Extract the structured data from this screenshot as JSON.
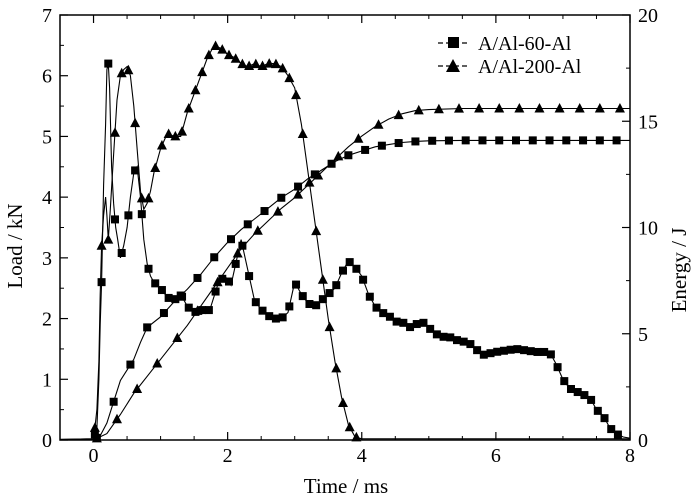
{
  "chart_data": {
    "type": "line",
    "xlabel": "Time / ms",
    "ylabel_left": "Load / kN",
    "ylabel_right": "Energy / J",
    "xlim": [
      -0.5,
      8
    ],
    "ylim_left": [
      0,
      7
    ],
    "ylim_right": [
      0,
      20
    ],
    "x_ticks": [
      0,
      2,
      4,
      6,
      8
    ],
    "y_left_ticks": [
      0,
      1,
      2,
      3,
      4,
      5,
      6,
      7
    ],
    "y_right_ticks": [
      0,
      5,
      10,
      15,
      20
    ],
    "legend_position": "top-right",
    "series": [
      {
        "name": "A/Al-60-Al",
        "marker": "square",
        "load": [
          [
            -0.5,
            0.01
          ],
          [
            0,
            0.02
          ],
          [
            0.05,
            0.2
          ],
          [
            0.08,
            1.0
          ],
          [
            0.1,
            1.9
          ],
          [
            0.12,
            2.6
          ],
          [
            0.15,
            4.2
          ],
          [
            0.18,
            5.2
          ],
          [
            0.2,
            6.1
          ],
          [
            0.22,
            6.2
          ],
          [
            0.24,
            5.8
          ],
          [
            0.27,
            4.5
          ],
          [
            0.3,
            3.9
          ],
          [
            0.33,
            3.5
          ],
          [
            0.36,
            3.3
          ],
          [
            0.4,
            3.0
          ],
          [
            0.45,
            3.2
          ],
          [
            0.5,
            3.5
          ],
          [
            0.55,
            4.0
          ],
          [
            0.6,
            4.4
          ],
          [
            0.65,
            4.5
          ],
          [
            0.7,
            4.0
          ],
          [
            0.75,
            3.3
          ],
          [
            0.8,
            2.9
          ],
          [
            0.85,
            2.7
          ],
          [
            0.9,
            2.6
          ],
          [
            1.0,
            2.5
          ],
          [
            1.1,
            2.35
          ],
          [
            1.2,
            2.3
          ],
          [
            1.3,
            2.4
          ],
          [
            1.4,
            2.2
          ],
          [
            1.5,
            2.1
          ],
          [
            1.6,
            2.15
          ],
          [
            1.7,
            2.1
          ],
          [
            1.75,
            2.2
          ],
          [
            1.85,
            2.55
          ],
          [
            1.95,
            2.7
          ],
          [
            2.0,
            2.65
          ],
          [
            2.05,
            2.55
          ],
          [
            2.12,
            2.9
          ],
          [
            2.2,
            3.3
          ],
          [
            2.3,
            2.8
          ],
          [
            2.4,
            2.3
          ],
          [
            2.5,
            2.15
          ],
          [
            2.6,
            2.05
          ],
          [
            2.7,
            2.0
          ],
          [
            2.8,
            2.0
          ],
          [
            2.9,
            2.1
          ],
          [
            3.0,
            2.6
          ],
          [
            3.1,
            2.4
          ],
          [
            3.2,
            2.25
          ],
          [
            3.3,
            2.2
          ],
          [
            3.4,
            2.3
          ],
          [
            3.5,
            2.4
          ],
          [
            3.6,
            2.5
          ],
          [
            3.7,
            2.75
          ],
          [
            3.8,
            2.95
          ],
          [
            3.9,
            2.85
          ],
          [
            4.0,
            2.7
          ],
          [
            4.1,
            2.4
          ],
          [
            4.2,
            2.2
          ],
          [
            4.3,
            2.1
          ],
          [
            4.4,
            2.05
          ],
          [
            4.5,
            1.95
          ],
          [
            4.6,
            1.95
          ],
          [
            4.7,
            1.85
          ],
          [
            4.8,
            1.9
          ],
          [
            4.9,
            1.95
          ],
          [
            5.0,
            1.85
          ],
          [
            5.1,
            1.75
          ],
          [
            5.2,
            1.7
          ],
          [
            5.3,
            1.7
          ],
          [
            5.4,
            1.65
          ],
          [
            5.6,
            1.6
          ],
          [
            5.8,
            1.4
          ],
          [
            6.0,
            1.45
          ],
          [
            6.3,
            1.5
          ],
          [
            6.6,
            1.45
          ],
          [
            6.8,
            1.45
          ],
          [
            6.9,
            1.25
          ],
          [
            7.0,
            1.0
          ],
          [
            7.1,
            0.85
          ],
          [
            7.2,
            0.8
          ],
          [
            7.3,
            0.75
          ],
          [
            7.4,
            0.7
          ],
          [
            7.5,
            0.5
          ],
          [
            7.6,
            0.4
          ],
          [
            7.7,
            0.2
          ],
          [
            7.8,
            0.1
          ],
          [
            7.9,
            0.05
          ],
          [
            8.0,
            0.03
          ]
        ],
        "energy": [
          [
            0,
            0
          ],
          [
            0.1,
            0.2
          ],
          [
            0.2,
            0.8
          ],
          [
            0.3,
            1.8
          ],
          [
            0.4,
            2.8
          ],
          [
            0.5,
            3.3
          ],
          [
            0.6,
            3.8
          ],
          [
            0.7,
            4.6
          ],
          [
            0.8,
            5.3
          ],
          [
            1.0,
            5.8
          ],
          [
            1.2,
            6.5
          ],
          [
            1.4,
            7.1
          ],
          [
            1.6,
            7.8
          ],
          [
            1.8,
            8.6
          ],
          [
            2.0,
            9.3
          ],
          [
            2.2,
            9.9
          ],
          [
            2.4,
            10.4
          ],
          [
            2.6,
            10.9
          ],
          [
            2.8,
            11.4
          ],
          [
            3.0,
            11.8
          ],
          [
            3.2,
            12.3
          ],
          [
            3.4,
            12.7
          ],
          [
            3.6,
            13.1
          ],
          [
            3.8,
            13.4
          ],
          [
            4.0,
            13.6
          ],
          [
            4.2,
            13.8
          ],
          [
            4.4,
            13.9
          ],
          [
            4.6,
            14.0
          ],
          [
            4.8,
            14.05
          ],
          [
            5.0,
            14.08
          ],
          [
            5.5,
            14.1
          ],
          [
            6.0,
            14.1
          ],
          [
            7.0,
            14.1
          ],
          [
            8.0,
            14.1
          ]
        ]
      },
      {
        "name": "A/Al-200-Al",
        "marker": "triangle",
        "load": [
          [
            -0.5,
            0.01
          ],
          [
            0,
            0.02
          ],
          [
            0.02,
            0.2
          ],
          [
            0.05,
            0.5
          ],
          [
            0.08,
            1.3
          ],
          [
            0.1,
            2.4
          ],
          [
            0.12,
            3.2
          ],
          [
            0.15,
            3.7
          ],
          [
            0.18,
            4.0
          ],
          [
            0.2,
            3.7
          ],
          [
            0.22,
            3.3
          ],
          [
            0.25,
            3.8
          ],
          [
            0.3,
            4.7
          ],
          [
            0.35,
            5.6
          ],
          [
            0.4,
            6.0
          ],
          [
            0.45,
            6.1
          ],
          [
            0.5,
            6.15
          ],
          [
            0.55,
            6.0
          ],
          [
            0.6,
            5.5
          ],
          [
            0.65,
            4.8
          ],
          [
            0.7,
            4.1
          ],
          [
            0.75,
            3.8
          ],
          [
            0.8,
            3.9
          ],
          [
            0.85,
            4.1
          ],
          [
            0.9,
            4.4
          ],
          [
            1.0,
            4.8
          ],
          [
            1.1,
            5.05
          ],
          [
            1.2,
            5.0
          ],
          [
            1.3,
            5.0
          ],
          [
            1.4,
            5.4
          ],
          [
            1.5,
            5.7
          ],
          [
            1.6,
            6.0
          ],
          [
            1.7,
            6.3
          ],
          [
            1.8,
            6.5
          ],
          [
            1.9,
            6.45
          ],
          [
            2.0,
            6.35
          ],
          [
            2.1,
            6.3
          ],
          [
            2.2,
            6.2
          ],
          [
            2.3,
            6.15
          ],
          [
            2.4,
            6.2
          ],
          [
            2.5,
            6.15
          ],
          [
            2.6,
            6.2
          ],
          [
            2.7,
            6.2
          ],
          [
            2.8,
            6.15
          ],
          [
            2.9,
            6.0
          ],
          [
            3.0,
            5.8
          ],
          [
            3.1,
            5.2
          ],
          [
            3.2,
            4.4
          ],
          [
            3.3,
            3.6
          ],
          [
            3.4,
            2.8
          ],
          [
            3.5,
            2.0
          ],
          [
            3.6,
            1.3
          ],
          [
            3.7,
            0.7
          ],
          [
            3.8,
            0.25
          ],
          [
            3.9,
            0.05
          ],
          [
            4.0,
            0.02
          ],
          [
            8.0,
            0.02
          ]
        ],
        "energy": [
          [
            0,
            0
          ],
          [
            0.2,
            0.3
          ],
          [
            0.4,
            1.2
          ],
          [
            0.6,
            2.2
          ],
          [
            0.8,
            3.0
          ],
          [
            1.0,
            3.8
          ],
          [
            1.2,
            4.6
          ],
          [
            1.4,
            5.4
          ],
          [
            1.6,
            6.3
          ],
          [
            1.8,
            7.2
          ],
          [
            2.0,
            8.1
          ],
          [
            2.2,
            9.0
          ],
          [
            2.4,
            9.7
          ],
          [
            2.6,
            10.3
          ],
          [
            2.8,
            10.9
          ],
          [
            3.0,
            11.4
          ],
          [
            3.2,
            12.0
          ],
          [
            3.4,
            12.6
          ],
          [
            3.6,
            13.2
          ],
          [
            3.8,
            13.8
          ],
          [
            4.0,
            14.3
          ],
          [
            4.2,
            14.75
          ],
          [
            4.4,
            15.1
          ],
          [
            4.6,
            15.35
          ],
          [
            4.8,
            15.5
          ],
          [
            5.0,
            15.55
          ],
          [
            5.5,
            15.6
          ],
          [
            6.0,
            15.6
          ],
          [
            7.0,
            15.6
          ],
          [
            8.0,
            15.6
          ]
        ]
      }
    ]
  }
}
